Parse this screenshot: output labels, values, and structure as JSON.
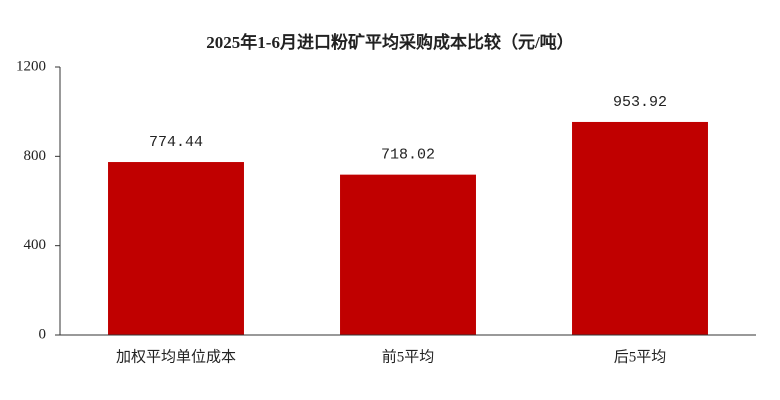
{
  "chart_data": {
    "type": "bar",
    "title": "2025年1-6月进口粉矿平均采购成本比较（元/吨）",
    "categories": [
      "加权平均单位成本",
      "前5平均",
      "后5平均"
    ],
    "values": [
      774.44,
      718.02,
      953.92
    ],
    "color": "#c00000",
    "ylim": [
      0,
      1200
    ],
    "yticks": [
      0,
      400,
      800,
      1200
    ],
    "grid": false,
    "data_labels": true
  }
}
